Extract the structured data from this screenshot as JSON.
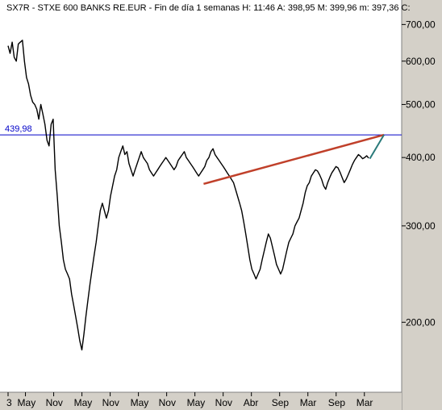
{
  "header": {
    "text": "SX7R - STXE 600 BANKS RE.EUR - Fin de día 1 semanas  H: 11:46  A: 398,95  M: 399,96  m: 397,36  C:"
  },
  "level_label": "439,98",
  "colors": {
    "price": "#000000",
    "level_line": "#0000c8",
    "trend_red": "#c0402a",
    "trend_teal": "#2a7a7a",
    "background": "#ffffff",
    "axis_panel": "#d4d0c8"
  },
  "chart_data": {
    "type": "line",
    "yscale": "log",
    "ylim": [
      150,
      730
    ],
    "y_ticks": [
      {
        "value": 700,
        "label": "700,00"
      },
      {
        "value": 600,
        "label": "600,00"
      },
      {
        "value": 500,
        "label": "500,00"
      },
      {
        "value": 400,
        "label": "400,00"
      },
      {
        "value": 300,
        "label": "300,00"
      },
      {
        "value": 200,
        "label": "200,00"
      }
    ],
    "x_ticks": [
      "3",
      "May",
      "Nov",
      "May",
      "Nov",
      "May",
      "Nov",
      "May",
      "Nov",
      "Abr",
      "Sep",
      "Mar",
      "Sep",
      "Mar"
    ],
    "x_tick_index": [
      0,
      16,
      42,
      68,
      94,
      120,
      146,
      172,
      198,
      224,
      250,
      276,
      302,
      328
    ],
    "series": [
      {
        "values": [
          640,
          620,
          650,
          610,
          600,
          645,
          650,
          655,
          600,
          560,
          545,
          520,
          505,
          500,
          490,
          470,
          500,
          480,
          460,
          430,
          420,
          460,
          470,
          380,
          340,
          300,
          280,
          260,
          250,
          245,
          240,
          225,
          215,
          205,
          195,
          185,
          178,
          190,
          205,
          220,
          235,
          250,
          265,
          280,
          300,
          320,
          330,
          320,
          310,
          320,
          340,
          355,
          370,
          380,
          400,
          410,
          420,
          405,
          410,
          390,
          380,
          370,
          380,
          390,
          400,
          410,
          400,
          395,
          390,
          380,
          375,
          370,
          375,
          380,
          385,
          390,
          395,
          400,
          395,
          390,
          385,
          380,
          385,
          395,
          400,
          405,
          410,
          400,
          395,
          390,
          385,
          380,
          375,
          370,
          375,
          380,
          385,
          395,
          400,
          410,
          415,
          405,
          400,
          395,
          390,
          385,
          380,
          375,
          370,
          365,
          360,
          350,
          340,
          330,
          320,
          305,
          290,
          275,
          260,
          250,
          245,
          240,
          245,
          250,
          260,
          270,
          280,
          290,
          285,
          275,
          265,
          255,
          250,
          245,
          250,
          260,
          270,
          280,
          285,
          290,
          300,
          305,
          310,
          320,
          330,
          345,
          355,
          360,
          370,
          375,
          380,
          378,
          372,
          365,
          355,
          350,
          360,
          368,
          375,
          380,
          385,
          383,
          376,
          368,
          360,
          365,
          372,
          380,
          388,
          395,
          400,
          405,
          402,
          398,
          400,
          403,
          399
        ]
      }
    ],
    "level_value": 439.98,
    "trendlines": [
      {
        "name": "red",
        "from": {
          "index": 180,
          "value": 358
        },
        "to": {
          "index": 346,
          "value": 440
        }
      },
      {
        "name": "teal",
        "from": {
          "index": 333,
          "value": 398
        },
        "to": {
          "index": 346,
          "value": 440
        }
      }
    ]
  }
}
